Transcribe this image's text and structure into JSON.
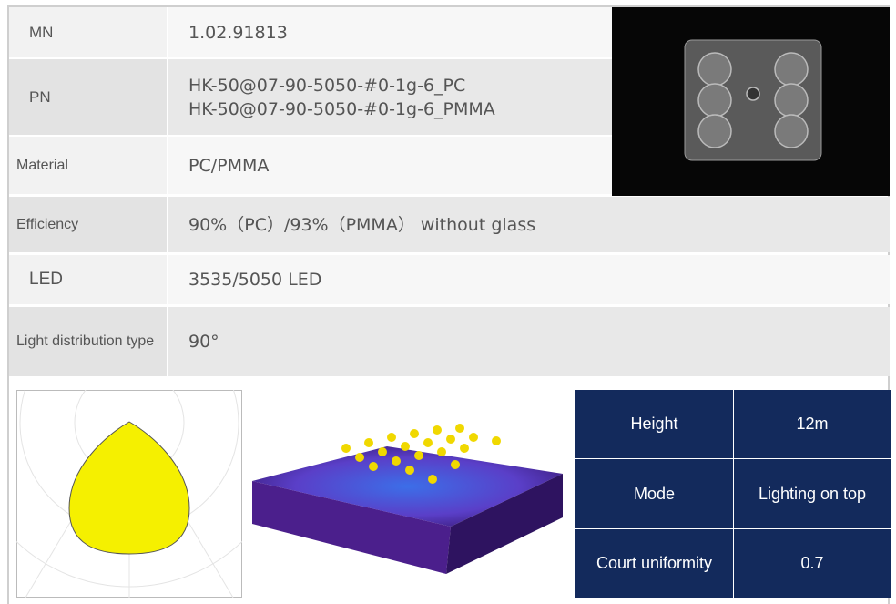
{
  "specs": [
    {
      "label": "MN",
      "value": [
        "1.02.91813"
      ]
    },
    {
      "label": "PN",
      "value": [
        "HK-50@07-90-5050-#0-1g-6_PC",
        "HK-50@07-90-5050-#0-1g-6_PMMA"
      ]
    },
    {
      "label": "Material",
      "value": [
        "PC/PMMA"
      ]
    },
    {
      "label": "Efficiency",
      "value": [
        "90%（PC）/93%（PMMA） without glass"
      ]
    },
    {
      "label": "LED",
      "value": [
        "3535/5050 LED"
      ]
    },
    {
      "label": "Light distribution type",
      "value": [
        "90°"
      ]
    }
  ],
  "conditions": [
    {
      "label": "Height",
      "value": "12m"
    },
    {
      "label": "Mode",
      "value": "Lighting on top"
    },
    {
      "label": "Court uniformity",
      "value": "0.7"
    }
  ]
}
